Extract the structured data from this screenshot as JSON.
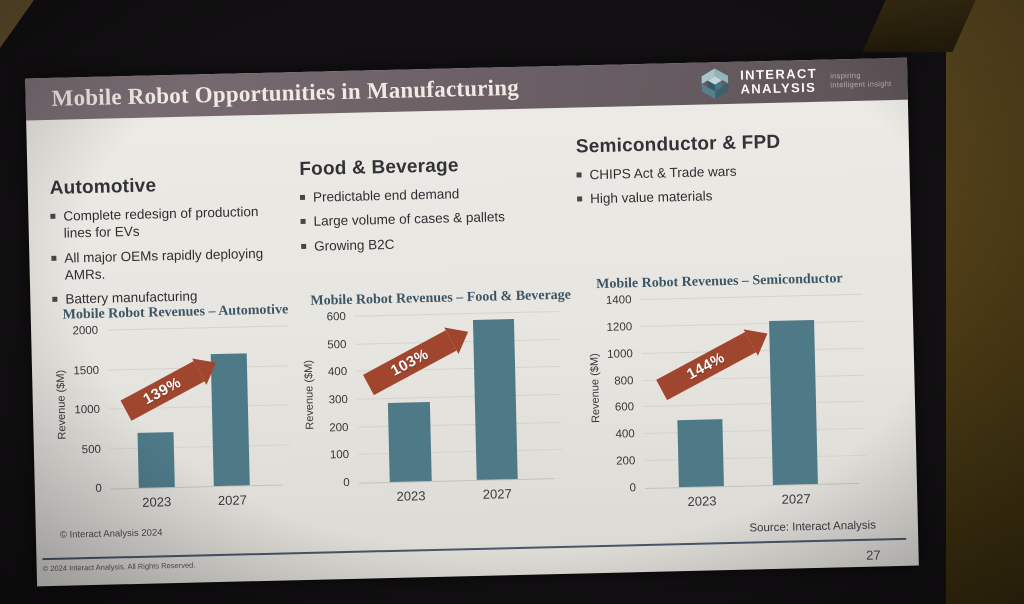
{
  "slide": {
    "title": "Mobile Robot Opportunities in Manufacturing",
    "page_number": "27",
    "source_note": "Source: Interact Analysis",
    "copyright_inner": "© Interact Analysis 2024",
    "copyright_footer": "© 2024 Interact Analysis. All Rights Reserved."
  },
  "brand": {
    "logo_icon": "interact-analysis-hex-cubes-icon",
    "name_line1": "INTERACT",
    "name_line2": "ANALYSIS",
    "tagline_line1": "inspiring",
    "tagline_line2": "intelligent insight"
  },
  "sections": [
    {
      "heading": "Automotive",
      "bullets": [
        "Complete redesign of production lines for EVs",
        "All major OEMs rapidly deploying AMRs.",
        "Battery manufacturing"
      ]
    },
    {
      "heading": "Food & Beverage",
      "bullets": [
        "Predictable end demand",
        "Large volume of cases & pallets",
        "Growing B2C"
      ]
    },
    {
      "heading": "Semiconductor & FPD",
      "bullets": [
        "CHIPS Act & Trade wars",
        "High value materials"
      ]
    }
  ],
  "chart_data": [
    {
      "type": "bar",
      "title": "Mobile Robot Revenues – Automotive",
      "categories": [
        "2023",
        "2027"
      ],
      "values": [
        700,
        1675
      ],
      "growth_label": "139%",
      "xlabel": "",
      "ylabel": "Revenue ($M)",
      "ylim": [
        0,
        2000
      ],
      "yticks": [
        0,
        500,
        1000,
        1500,
        2000
      ],
      "grid": true,
      "legend": false,
      "bar_color": "#4e7a88",
      "arrow_color": "#a0452e"
    },
    {
      "type": "bar",
      "title": "Mobile Robot Revenues – Food & Beverage",
      "categories": [
        "2023",
        "2027"
      ],
      "values": [
        285,
        580
      ],
      "growth_label": "103%",
      "xlabel": "",
      "ylabel": "Revenue ($M)",
      "ylim": [
        0,
        600
      ],
      "yticks": [
        0,
        100,
        200,
        300,
        400,
        500,
        600
      ],
      "grid": true,
      "legend": false,
      "bar_color": "#4e7a88",
      "arrow_color": "#a0452e"
    },
    {
      "type": "bar",
      "title": "Mobile Robot Revenues – Semiconductor",
      "categories": [
        "2023",
        "2027"
      ],
      "values": [
        500,
        1220
      ],
      "growth_label": "144%",
      "xlabel": "",
      "ylabel": "Revenue ($M)",
      "ylim": [
        0,
        1400
      ],
      "yticks": [
        0,
        200,
        400,
        600,
        800,
        1000,
        1200,
        1400
      ],
      "grid": true,
      "legend": false,
      "bar_color": "#4e7a88",
      "arrow_color": "#a0452e"
    }
  ],
  "colors": {
    "slide_background": "#e9e7e2",
    "header_bar_left": "#7b6f75",
    "header_bar_right": "#5e5458",
    "bar_teal": "#4e7a88",
    "arrow_rust": "#a0452e",
    "chart_title_slate": "#3c5565",
    "footer_rule": "#44586a",
    "wall_brown": "#4a3a14"
  }
}
